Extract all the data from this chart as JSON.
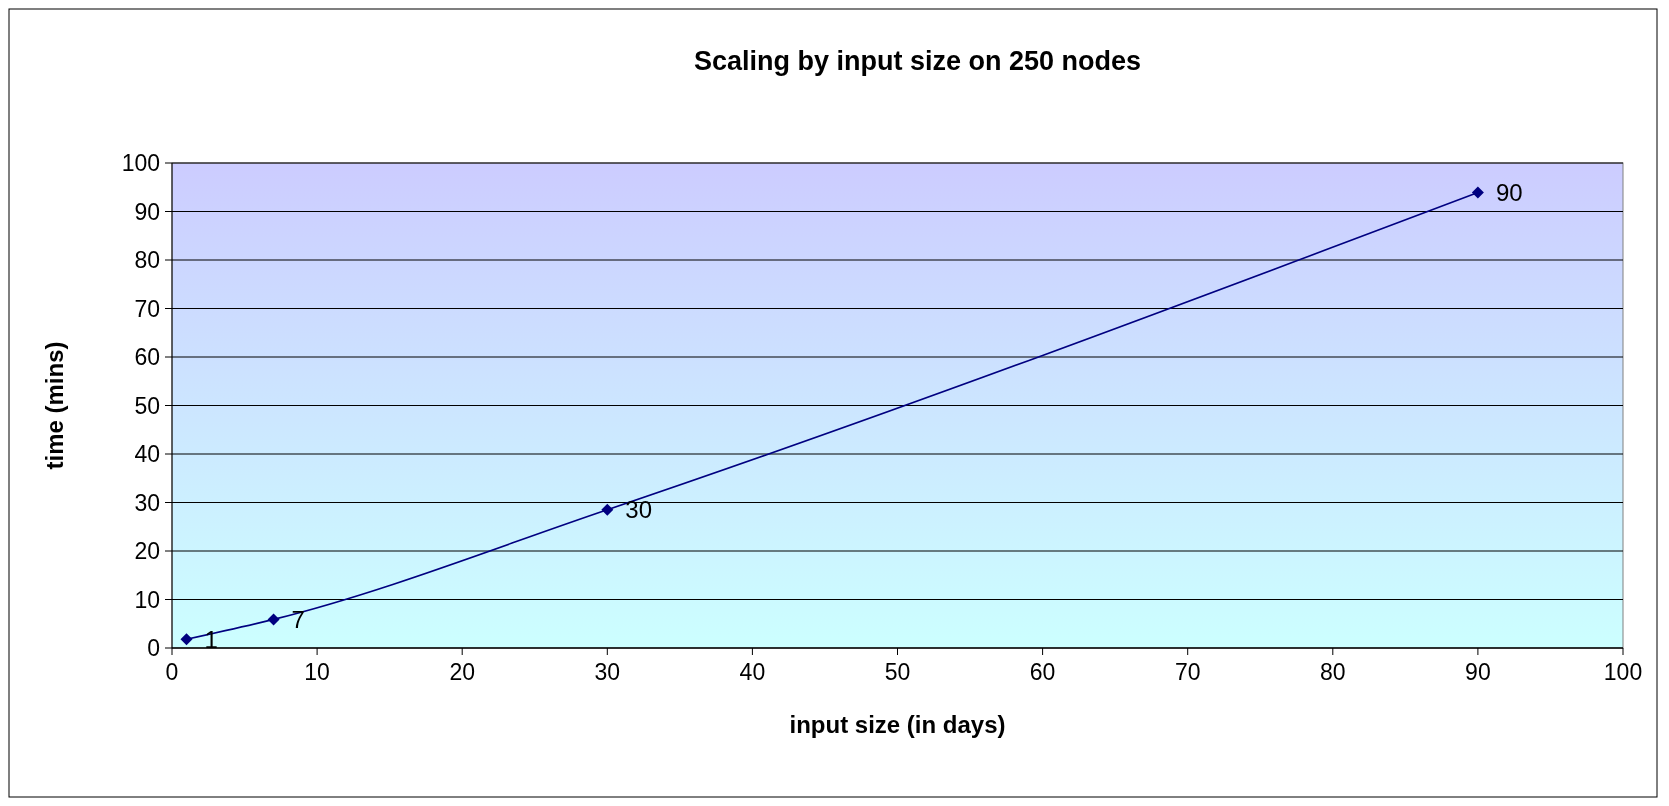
{
  "chart_data": {
    "type": "line",
    "title": "Scaling by input size on 250 nodes",
    "xlabel": "input size (in days)",
    "ylabel": "time (mins)",
    "x": [
      1,
      7,
      30,
      90
    ],
    "series": [
      {
        "color": "#000080",
        "values": [
          1.8,
          5.9,
          28.5,
          93.9
        ]
      }
    ],
    "annotations": [
      {
        "text": "1",
        "x": 1,
        "y": 1.8
      },
      {
        "text": "7",
        "x": 7,
        "y": 5.9
      },
      {
        "text": "30",
        "x": 30,
        "y": 28.5
      },
      {
        "text": "90",
        "x": 90,
        "y": 93.9
      }
    ],
    "xlim": [
      0,
      100
    ],
    "xticks": [
      0,
      10,
      20,
      30,
      40,
      50,
      60,
      70,
      80,
      90,
      100
    ],
    "ylim": [
      0,
      100
    ],
    "yticks": [
      0,
      10,
      20,
      30,
      40,
      50,
      60,
      70,
      80,
      90,
      100
    ],
    "grid": "y",
    "marker": "diamond",
    "line_style": "solid"
  }
}
